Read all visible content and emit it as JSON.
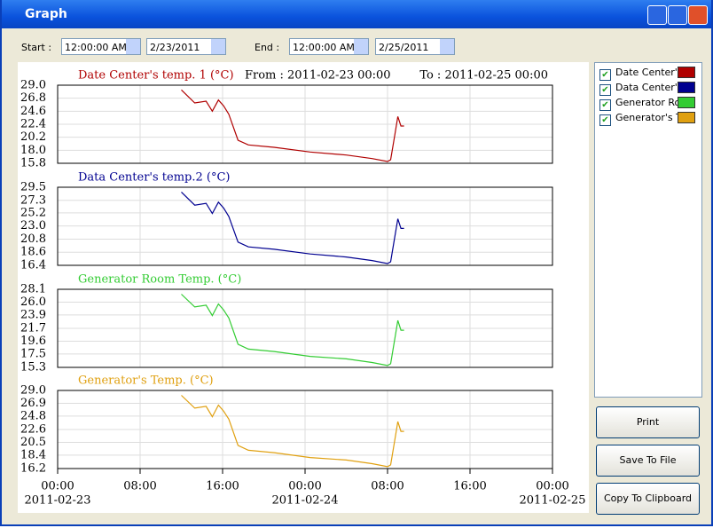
{
  "window": {
    "title": "Graph",
    "start_label": "Start :",
    "start_time": "12:00:00 AM",
    "start_date": "2/23/2011",
    "end_label": "End :",
    "end_time": "12:00:00 AM",
    "end_date": "2/25/2011",
    "legend": [
      "Date Center's",
      "Data Center's",
      "Generator Roo",
      "Generator's Te"
    ],
    "buttons": [
      "Print",
      "Save To File",
      "Copy To Clipboard"
    ]
  },
  "chart_data": [
    {
      "type": "line",
      "title": "Date Center's temp. 1 (°C)",
      "annotations": [
        "From : 2011-02-23 00:00",
        "To : 2011-02-25 00:00"
      ],
      "x": [
        12,
        13.3,
        14.4,
        15,
        15.6,
        16.1,
        16.6,
        17.5,
        18.5,
        21,
        24.5,
        28,
        30.5,
        32,
        32.3,
        32.7,
        33,
        33.3,
        33.6
      ],
      "series": [
        {
          "color": "#b00000",
          "values": [
            28.2,
            26.0,
            26.3,
            24.6,
            26.5,
            25.5,
            24.1,
            19.7,
            18.9,
            18.5,
            17.7,
            17.2,
            16.6,
            16.1,
            16.4,
            20.5,
            23.7,
            22.1,
            22.1
          ]
        }
      ],
      "xlim": [
        0,
        48
      ],
      "xticks": [
        0,
        8,
        16,
        24,
        32,
        40,
        48
      ],
      "ylim": [
        15.8,
        29.0
      ],
      "yticks": [
        15.8,
        {
          "value": 18,
          "label": "18.0"
        },
        20.2,
        22.4,
        24.6,
        26.8,
        {
          "value": 29,
          "label": "29.0"
        }
      ],
      "grid": true
    },
    {
      "type": "line",
      "title": "Data Center's temp.2 (°C)",
      "x": [
        12,
        13.3,
        14.4,
        15,
        15.6,
        16.1,
        16.6,
        17.5,
        18.5,
        21,
        24.5,
        28,
        30.5,
        32,
        32.3,
        32.7,
        33,
        33.3,
        33.6
      ],
      "series": [
        {
          "color": "#000090",
          "values": [
            28.7,
            26.5,
            26.8,
            25.1,
            27.0,
            26.0,
            24.6,
            20.3,
            19.5,
            19.1,
            18.3,
            17.8,
            17.2,
            16.7,
            17.0,
            21.1,
            24.2,
            22.6,
            22.6
          ]
        }
      ],
      "xlim": [
        0,
        48
      ],
      "xticks": [
        0,
        8,
        16,
        24,
        32,
        40,
        48
      ],
      "ylim": [
        16.4,
        29.5
      ],
      "yticks": [
        16.4,
        18.6,
        20.8,
        {
          "value": 23,
          "label": "23.0"
        },
        25.2,
        27.3,
        29.5
      ],
      "grid": true
    },
    {
      "type": "line",
      "title": "Generator Room Temp. (°C)",
      "x": [
        12,
        13.3,
        14.4,
        15,
        15.6,
        16.1,
        16.6,
        17.5,
        18.5,
        21,
        24.5,
        28,
        30.5,
        32,
        32.3,
        32.7,
        33,
        33.3,
        33.6
      ],
      "series": [
        {
          "color": "#33cc33",
          "values": [
            27.3,
            25.2,
            25.5,
            23.8,
            25.7,
            24.7,
            23.4,
            19.1,
            18.3,
            17.9,
            17.1,
            16.7,
            16.1,
            15.6,
            15.9,
            19.9,
            23.0,
            21.4,
            21.4
          ]
        }
      ],
      "xlim": [
        0,
        48
      ],
      "xticks": [
        0,
        8,
        16,
        24,
        32,
        40,
        48
      ],
      "ylim": [
        15.3,
        28.1
      ],
      "yticks": [
        15.3,
        17.5,
        19.6,
        21.7,
        23.9,
        {
          "value": 26,
          "label": "26.0"
        },
        28.1
      ],
      "grid": true
    },
    {
      "type": "line",
      "title": "Generator's Temp. (°C)",
      "x": [
        12,
        13.3,
        14.4,
        15,
        15.6,
        16.1,
        16.6,
        17.5,
        18.5,
        21,
        24.5,
        28,
        30.5,
        32,
        32.3,
        32.7,
        33,
        33.3,
        33.6
      ],
      "series": [
        {
          "color": "#e0a010",
          "values": [
            28.2,
            26.1,
            26.4,
            24.7,
            26.6,
            25.6,
            24.3,
            20.0,
            19.2,
            18.8,
            18.0,
            17.6,
            17.0,
            16.5,
            16.8,
            20.8,
            23.9,
            22.3,
            22.3
          ]
        }
      ],
      "xlim": [
        0,
        48
      ],
      "xticks": [
        {
          "value": 0,
          "label": "00:00"
        },
        {
          "value": 8,
          "label": "08:00"
        },
        {
          "value": 16,
          "label": "16:00"
        },
        {
          "value": 24,
          "label": "00:00"
        },
        {
          "value": 32,
          "label": "08:00"
        },
        {
          "value": 40,
          "label": "16:00"
        },
        {
          "value": 48,
          "label": "00:00"
        }
      ],
      "xdate_labels": [
        {
          "value": 0,
          "label": "2011-02-23"
        },
        {
          "value": 24,
          "label": "2011-02-24"
        },
        {
          "value": 48,
          "label": "2011-02-25"
        }
      ],
      "ylim": [
        16.2,
        29.0
      ],
      "yticks": [
        16.2,
        18.4,
        20.5,
        22.6,
        24.8,
        26.9,
        {
          "value": 29,
          "label": "29.0"
        }
      ],
      "grid": true
    }
  ]
}
